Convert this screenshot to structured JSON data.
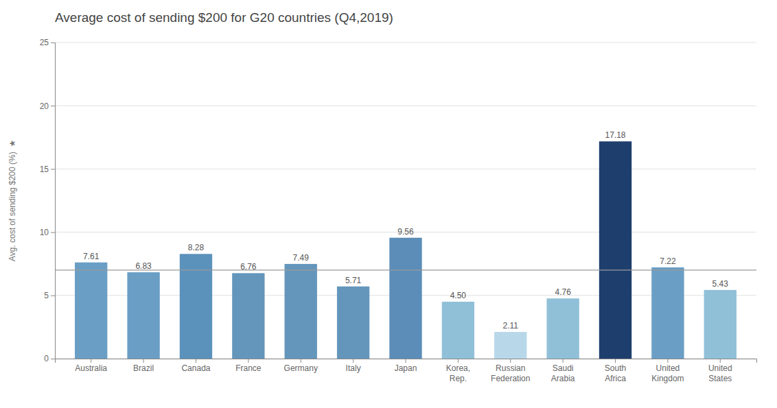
{
  "chart_data": {
    "type": "bar",
    "title": "Average cost of sending $200 for G20 countries (Q4,2019)",
    "ylabel": "Avg. cost of sending $200 (%)  ★",
    "categories": [
      "Australia",
      "Brazil",
      "Canada",
      "France",
      "Germany",
      "Italy",
      "Japan",
      "Korea,\nRep.",
      "Russian\nFederation",
      "Saudi\nArabia",
      "South\nAfrica",
      "United\nKingdom",
      "United\nStates"
    ],
    "values": [
      7.61,
      6.83,
      8.28,
      6.76,
      7.49,
      5.71,
      9.56,
      4.5,
      2.11,
      4.76,
      17.18,
      7.22,
      5.43
    ],
    "value_labels": [
      "7.61",
      "6.83",
      "8.28",
      "6.76",
      "7.49",
      "5.71",
      "9.56",
      "4.50",
      "2.11",
      "4.76",
      "17.18",
      "7.22",
      "5.43"
    ],
    "colors": [
      "#6a9ec5",
      "#6a9ec5",
      "#5b92bc",
      "#6496bc",
      "#6496bc",
      "#6496bc",
      "#5b8db8",
      "#90c0d8",
      "#b8d8ea",
      "#90c0d8",
      "#1e3f6e",
      "#6a9ec5",
      "#90c0d8"
    ],
    "reference_line": 7.0,
    "ylim": [
      0,
      25
    ],
    "yticks": [
      0,
      5,
      10,
      15,
      20,
      25
    ],
    "grid": true,
    "data_labels": true
  }
}
